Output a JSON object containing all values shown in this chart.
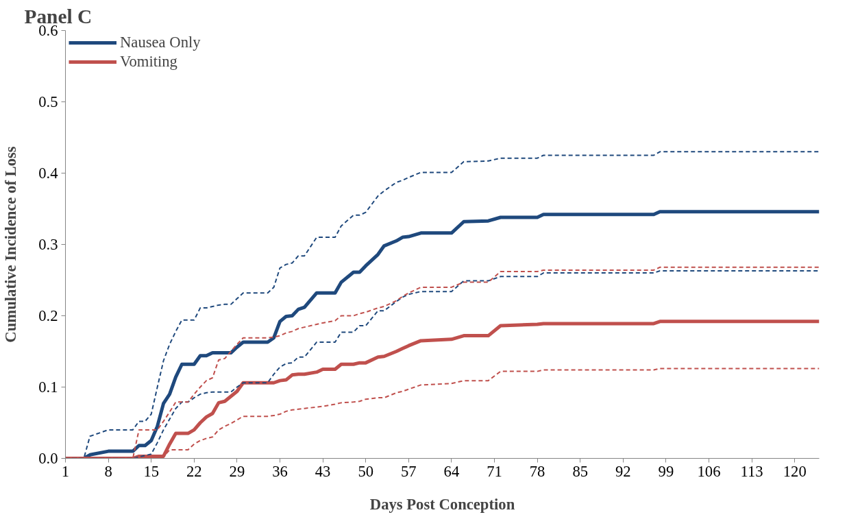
{
  "chart_data": {
    "type": "line",
    "title": "Panel C",
    "xlabel": "Days Post Conception",
    "ylabel": "Cumulative Incidence of Loss",
    "x": [
      1,
      4,
      5,
      8,
      12,
      13,
      14,
      15,
      16,
      17,
      18,
      19,
      20,
      21,
      22,
      23,
      24,
      25,
      26,
      27,
      28,
      29,
      30,
      34,
      35,
      36,
      37,
      38,
      39,
      40,
      42,
      43,
      45,
      46,
      48,
      49,
      50,
      52,
      53,
      55,
      56,
      57,
      59,
      64,
      66,
      70,
      72,
      78,
      79,
      97,
      98,
      124
    ],
    "series": [
      {
        "name": "Nausea Only",
        "color": "#1f497d",
        "values": [
          0,
          0,
          0.005,
          0.01,
          0.01,
          0.018,
          0.018,
          0.025,
          0.045,
          0.077,
          0.09,
          0.114,
          0.132,
          0.132,
          0.132,
          0.144,
          0.144,
          0.148,
          0.148,
          0.148,
          0.148,
          0.156,
          0.163,
          0.163,
          0.169,
          0.192,
          0.199,
          0.2,
          0.209,
          0.212,
          0.232,
          0.232,
          0.232,
          0.247,
          0.261,
          0.261,
          0.27,
          0.286,
          0.298,
          0.305,
          0.31,
          0.311,
          0.316,
          0.316,
          0.332,
          0.333,
          0.338,
          0.338,
          0.342,
          0.342,
          0.346,
          0.346
        ]
      },
      {
        "name": "Vomiting",
        "color": "#c0504d",
        "values": [
          0,
          0,
          0,
          0,
          0,
          0.003,
          0.003,
          0.003,
          0.003,
          0.003,
          0.02,
          0.035,
          0.035,
          0.035,
          0.04,
          0.05,
          0.058,
          0.063,
          0.078,
          0.08,
          0.087,
          0.094,
          0.106,
          0.106,
          0.106,
          0.109,
          0.11,
          0.117,
          0.118,
          0.118,
          0.121,
          0.125,
          0.125,
          0.132,
          0.132,
          0.134,
          0.134,
          0.142,
          0.143,
          0.15,
          0.154,
          0.158,
          0.165,
          0.167,
          0.172,
          0.172,
          0.186,
          0.188,
          0.189,
          0.189,
          0.192,
          0.192
        ]
      },
      {
        "color": "#1f497d",
        "line_style": "dashed",
        "values": [
          0,
          0,
          0.031,
          0.04,
          0.04,
          0.052,
          0.052,
          0.062,
          0.1,
          0.137,
          0.16,
          0.178,
          0.194,
          0.194,
          0.194,
          0.211,
          0.211,
          0.213,
          0.215,
          0.216,
          0.216,
          0.224,
          0.232,
          0.232,
          0.24,
          0.267,
          0.272,
          0.274,
          0.284,
          0.284,
          0.31,
          0.31,
          0.31,
          0.326,
          0.341,
          0.341,
          0.345,
          0.368,
          0.375,
          0.387,
          0.39,
          0.394,
          0.401,
          0.401,
          0.416,
          0.417,
          0.421,
          0.421,
          0.425,
          0.425,
          0.43,
          0.43
        ]
      },
      {
        "color": "#1f497d",
        "line_style": "dashed",
        "values": [
          0,
          0,
          0,
          0,
          0,
          0.002,
          0.004,
          0.006,
          0.022,
          0.04,
          0.055,
          0.07,
          0.079,
          0.079,
          0.085,
          0.09,
          0.092,
          0.093,
          0.093,
          0.093,
          0.093,
          0.1,
          0.106,
          0.106,
          0.118,
          0.128,
          0.133,
          0.134,
          0.142,
          0.142,
          0.163,
          0.163,
          0.163,
          0.177,
          0.177,
          0.186,
          0.186,
          0.207,
          0.207,
          0.22,
          0.226,
          0.23,
          0.234,
          0.234,
          0.249,
          0.249,
          0.255,
          0.255,
          0.26,
          0.26,
          0.263,
          0.263
        ]
      },
      {
        "color": "#c0504d",
        "line_style": "dashed",
        "values": [
          0,
          0,
          0,
          0,
          0,
          0.04,
          0.04,
          0.04,
          0.04,
          0.052,
          0.065,
          0.079,
          0.079,
          0.079,
          0.09,
          0.1,
          0.109,
          0.113,
          0.138,
          0.14,
          0.15,
          0.16,
          0.169,
          0.169,
          0.17,
          0.172,
          0.176,
          0.178,
          0.182,
          0.184,
          0.188,
          0.19,
          0.193,
          0.2,
          0.2,
          0.203,
          0.205,
          0.211,
          0.213,
          0.221,
          0.227,
          0.232,
          0.24,
          0.24,
          0.247,
          0.247,
          0.262,
          0.262,
          0.264,
          0.264,
          0.268,
          0.268
        ]
      },
      {
        "color": "#c0504d",
        "line_style": "dashed",
        "values": [
          0,
          0,
          0,
          0,
          0,
          0,
          0,
          0,
          0,
          0.002,
          0.012,
          0.012,
          0.012,
          0.012,
          0.02,
          0.025,
          0.028,
          0.03,
          0.04,
          0.045,
          0.049,
          0.054,
          0.059,
          0.059,
          0.06,
          0.062,
          0.066,
          0.068,
          0.069,
          0.07,
          0.072,
          0.073,
          0.076,
          0.078,
          0.079,
          0.08,
          0.083,
          0.085,
          0.085,
          0.092,
          0.094,
          0.097,
          0.103,
          0.105,
          0.109,
          0.109,
          0.122,
          0.122,
          0.124,
          0.124,
          0.126,
          0.126
        ]
      }
    ],
    "xlim": [
      1,
      124
    ],
    "xticks": [
      1,
      8,
      15,
      22,
      29,
      36,
      43,
      50,
      57,
      64,
      71,
      78,
      85,
      92,
      99,
      106,
      113,
      120
    ],
    "ylim": [
      0,
      0.6
    ],
    "yticks": [
      {
        "value": 0,
        "label": "0.0"
      },
      {
        "value": 0.1,
        "label": "0.1"
      },
      {
        "value": 0.2,
        "label": "0.2"
      },
      {
        "value": 0.3,
        "label": "0.3"
      },
      {
        "value": 0.4,
        "label": "0.4"
      },
      {
        "value": 0.5,
        "label": "0.5"
      },
      {
        "value": 0.6,
        "label": "0.6"
      }
    ],
    "grid": false,
    "legend": "top left",
    "line_style": "solid",
    "marker": "none"
  }
}
